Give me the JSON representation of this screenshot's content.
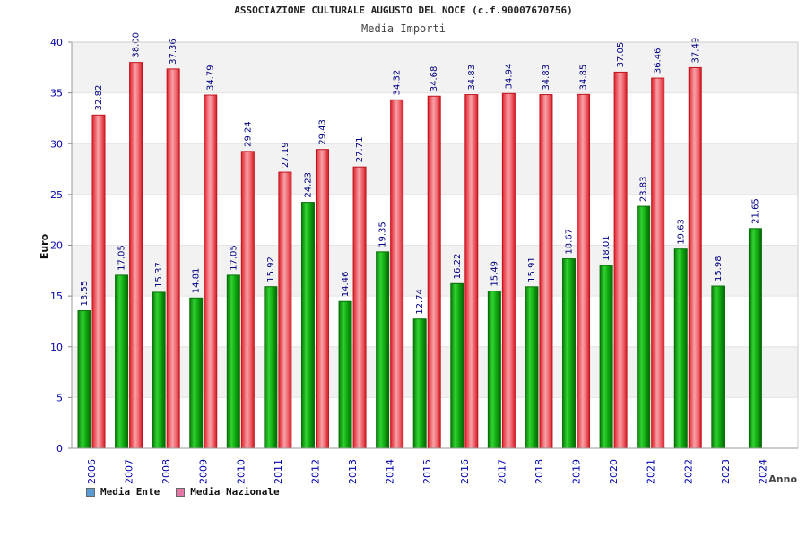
{
  "header": {
    "title": "ASSOCIAZIONE CULTURALE AUGUSTO DEL NOCE (c.f.90007670756)",
    "subtitle": "Media Importi"
  },
  "legend": {
    "items": [
      {
        "label": "Media Ente",
        "color": "#5b9bd5"
      },
      {
        "label": "Media Nazionale",
        "color": "#e377a8"
      }
    ]
  },
  "colors": {
    "ente_bar": "#10b010",
    "nazionale_bar": "#e8323a",
    "axis_labels": "#0000aa",
    "value_labels": "#000080",
    "grid_band": "#f2f2f2"
  },
  "chart_data": {
    "type": "bar",
    "title": "Media Importi",
    "xlabel": "Anno",
    "ylabel": "Euro",
    "ylim": [
      0,
      40
    ],
    "yticks": [
      0,
      5,
      10,
      15,
      20,
      25,
      30,
      35,
      40
    ],
    "categories": [
      "2006",
      "2007",
      "2008",
      "2009",
      "2010",
      "2011",
      "2012",
      "2013",
      "2014",
      "2015",
      "2016",
      "2017",
      "2018",
      "2019",
      "2020",
      "2021",
      "2022",
      "2023",
      "2024"
    ],
    "series": [
      {
        "name": "Media Ente",
        "values": [
          13.55,
          17.05,
          15.37,
          14.81,
          17.05,
          15.92,
          24.23,
          14.46,
          19.35,
          12.74,
          16.22,
          15.49,
          15.91,
          18.67,
          18.01,
          23.83,
          19.63,
          15.98,
          21.65
        ],
        "labels": [
          "13.55",
          "17.05",
          "15.37",
          "14.81",
          "17.05",
          "15.92",
          "24.23",
          "14.46",
          "19.35",
          "12.74",
          "16.22",
          "15.49",
          "15.91",
          "18.67",
          "18.01",
          "23.83",
          "19.63",
          "15.98",
          "21.65"
        ]
      },
      {
        "name": "Media Nazionale",
        "values": [
          32.82,
          38.0,
          37.36,
          34.79,
          29.24,
          27.19,
          29.43,
          27.71,
          34.32,
          34.68,
          34.83,
          34.94,
          34.83,
          34.85,
          37.05,
          36.46,
          37.49,
          null,
          null
        ],
        "labels": [
          "32.82",
          "38.00",
          "37.36",
          "34.79",
          "29.24",
          "27.19",
          "29.43",
          "27.71",
          "34.32",
          "34.68",
          "34.83",
          "34.94",
          "34.83",
          "34.85",
          "37.05",
          "36.46",
          "37.49",
          null,
          null
        ]
      }
    ],
    "grid": true,
    "legend_position": "bottom-left"
  }
}
